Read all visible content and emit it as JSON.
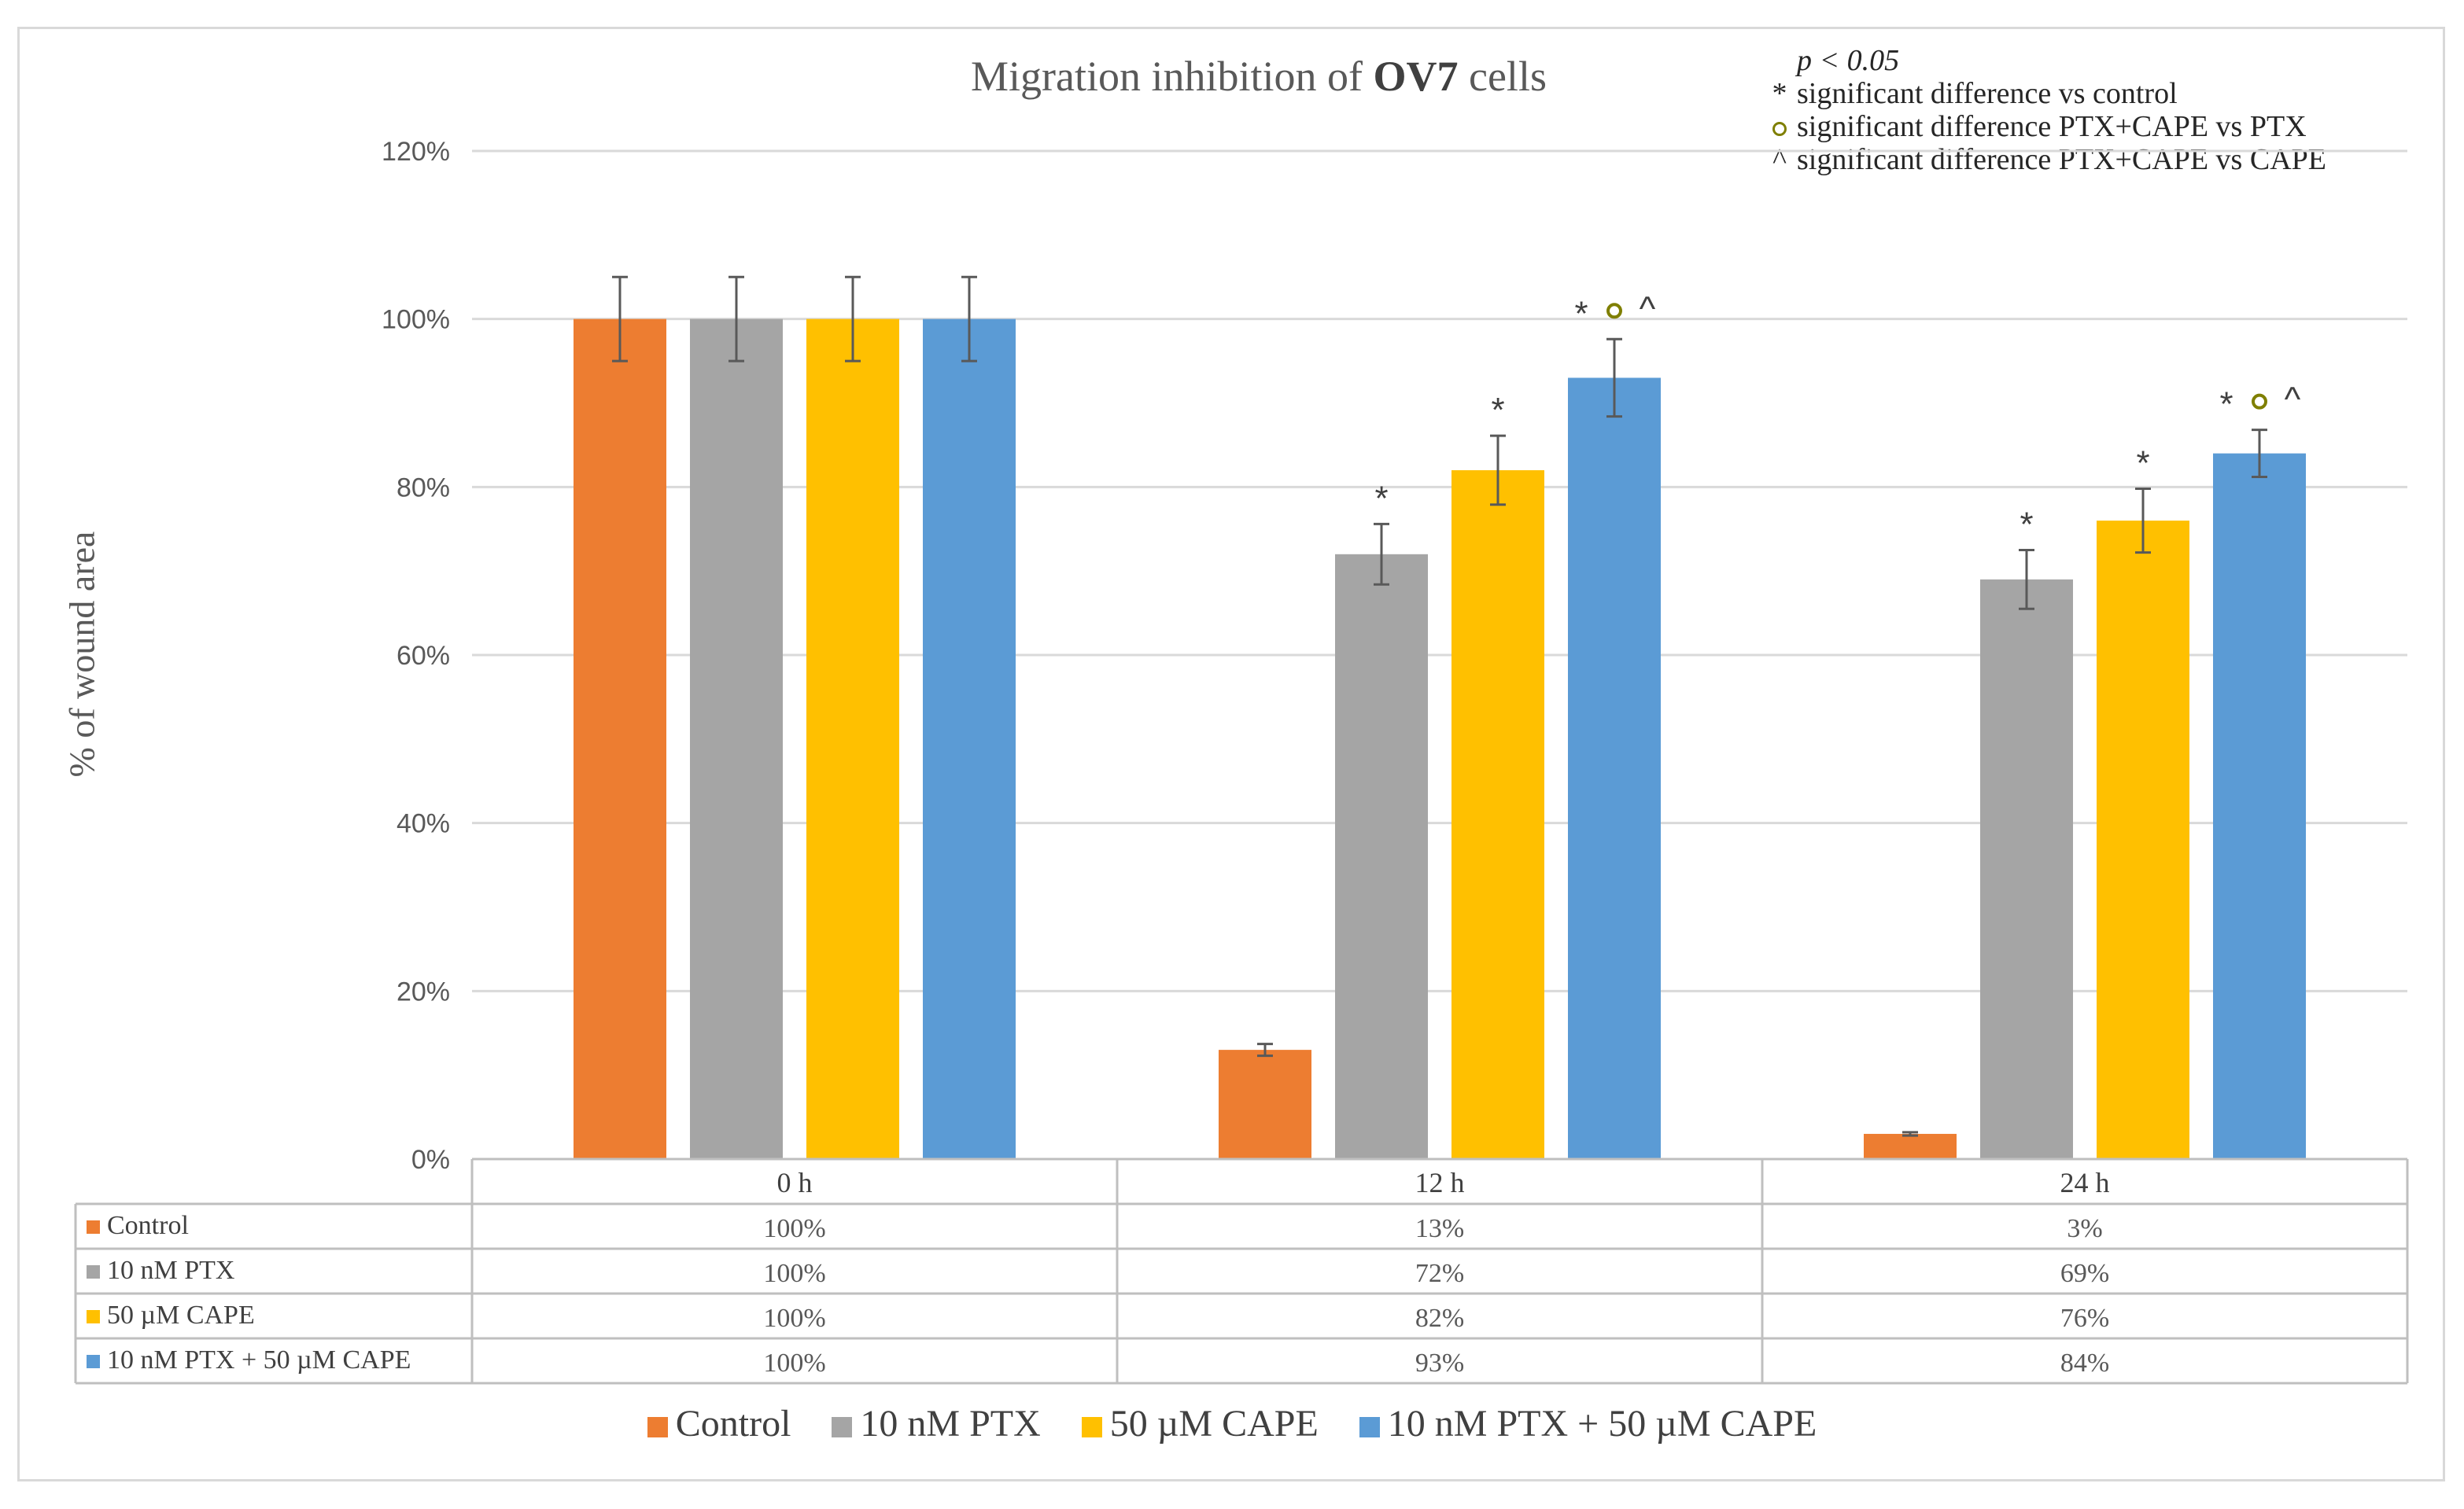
{
  "chart_data": {
    "type": "bar",
    "title_prefix": "Migration inhibition of ",
    "title_bold": "OV7",
    "title_suffix": " cells",
    "ylabel": "% of wound area",
    "xlabel": "",
    "ylim": [
      0,
      120
    ],
    "yticks": [
      "0%",
      "20%",
      "40%",
      "60%",
      "80%",
      "100%",
      "120%"
    ],
    "ytick_values": [
      0,
      20,
      40,
      60,
      80,
      100,
      120
    ],
    "categories": [
      "0 h",
      "12 h",
      "24 h"
    ],
    "grid": true,
    "legend_position": "bottom",
    "series": [
      {
        "name": "Control",
        "color": "#ed7d31",
        "values": [
          100,
          13,
          3
        ],
        "errors": [
          5,
          0.7,
          0.2
        ],
        "labels": [
          "100%",
          "13%",
          "3%"
        ],
        "marks": [
          "",
          "",
          ""
        ]
      },
      {
        "name": "10 nM PTX",
        "color": "#a5a5a5",
        "values": [
          100,
          72,
          69
        ],
        "errors": [
          5,
          3.6,
          3.5
        ],
        "labels": [
          "100%",
          "72%",
          "69%"
        ],
        "marks": [
          "",
          "*",
          "*"
        ]
      },
      {
        "name": "50 µM CAPE",
        "color": "#ffc000",
        "values": [
          100,
          82,
          76
        ],
        "errors": [
          5,
          4.1,
          3.8
        ],
        "labels": [
          "100%",
          "82%",
          "76%"
        ],
        "marks": [
          "",
          "*",
          "*"
        ]
      },
      {
        "name": "10 nM PTX + 50 µM CAPE",
        "color": "#5b9bd5",
        "values": [
          100,
          93,
          84
        ],
        "errors": [
          5,
          4.6,
          2.8
        ],
        "labels": [
          "100%",
          "93%",
          "84%"
        ],
        "marks": [
          "",
          "* o ^",
          "* o ^"
        ]
      }
    ]
  },
  "annotations": {
    "p_value": "p < 0.05",
    "items": [
      {
        "symbol": "*",
        "text": "significant difference vs control"
      },
      {
        "symbol": "o",
        "text": "significant difference PTX+CAPE vs PTX"
      },
      {
        "symbol": "^",
        "text": "significant difference PTX+CAPE vs CAPE"
      }
    ]
  }
}
